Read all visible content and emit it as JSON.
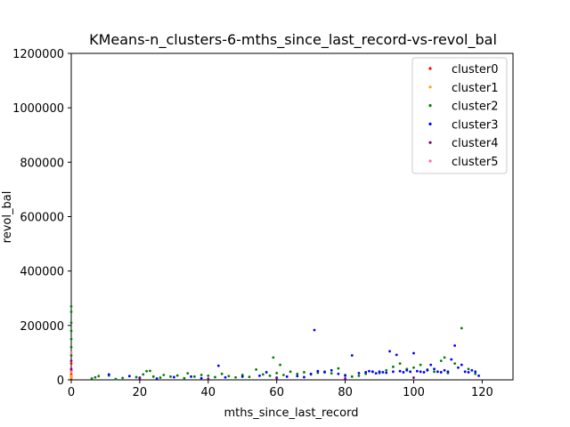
{
  "chart_data": {
    "type": "scatter",
    "title": "KMeans-n_clusters-6-mths_since_last_record-vs-revol_bal",
    "xlabel": "mths_since_last_record",
    "ylabel": "revol_bal",
    "xlim": [
      0,
      129
    ],
    "ylim": [
      0,
      1200000
    ],
    "xticks": [
      0,
      20,
      40,
      60,
      80,
      100,
      120
    ],
    "yticks": [
      0,
      200000,
      400000,
      600000,
      800000,
      1000000,
      1200000
    ],
    "legend_position": "top-right",
    "grid": false,
    "series": [
      {
        "name": "cluster0",
        "color": "#ff0000",
        "points": [
          [
            0,
            5000
          ],
          [
            0,
            12000
          ],
          [
            0,
            20000
          ],
          [
            0,
            35000
          ],
          [
            0,
            60000
          ]
        ]
      },
      {
        "name": "cluster1",
        "color": "#ffa500",
        "points": [
          [
            0,
            8000
          ],
          [
            0,
            15000
          ],
          [
            0,
            28000
          ]
        ]
      },
      {
        "name": "cluster2",
        "color": "#008000",
        "points": [
          [
            0,
            270000
          ],
          [
            0,
            250000
          ],
          [
            0,
            210000
          ],
          [
            0,
            180000
          ],
          [
            0,
            150000
          ],
          [
            0,
            120000
          ],
          [
            0,
            90000
          ],
          [
            6,
            5000
          ],
          [
            7,
            9000
          ],
          [
            8,
            14000
          ],
          [
            11,
            16000
          ],
          [
            13,
            3000
          ],
          [
            15,
            7000
          ],
          [
            17,
            14000
          ],
          [
            19,
            10000
          ],
          [
            21,
            20000
          ],
          [
            22,
            32000
          ],
          [
            23,
            33000
          ],
          [
            24,
            12000
          ],
          [
            26,
            8000
          ],
          [
            27,
            18000
          ],
          [
            29,
            12000
          ],
          [
            31,
            16000
          ],
          [
            33,
            6000
          ],
          [
            34,
            24000
          ],
          [
            36,
            12000
          ],
          [
            38,
            18000
          ],
          [
            40,
            15000
          ],
          [
            42,
            10000
          ],
          [
            44,
            22000
          ],
          [
            46,
            14000
          ],
          [
            48,
            9000
          ],
          [
            50,
            18000
          ],
          [
            52,
            11000
          ],
          [
            54,
            38000
          ],
          [
            56,
            20000
          ],
          [
            58,
            15000
          ],
          [
            59,
            82000
          ],
          [
            60,
            25000
          ],
          [
            61,
            55000
          ],
          [
            62,
            18000
          ],
          [
            64,
            30000
          ],
          [
            66,
            22000
          ],
          [
            68,
            28000
          ],
          [
            70,
            20000
          ],
          [
            72,
            26000
          ],
          [
            74,
            30000
          ],
          [
            76,
            24000
          ],
          [
            78,
            42000
          ],
          [
            80,
            18000
          ],
          [
            82,
            12000
          ],
          [
            84,
            15000
          ],
          [
            86,
            22000
          ],
          [
            88,
            30000
          ],
          [
            90,
            25000
          ],
          [
            92,
            35000
          ],
          [
            94,
            48000
          ],
          [
            96,
            60000
          ],
          [
            98,
            40000
          ],
          [
            100,
            45000
          ],
          [
            102,
            55000
          ],
          [
            104,
            38000
          ],
          [
            106,
            30000
          ],
          [
            108,
            70000
          ],
          [
            109,
            82000
          ],
          [
            110,
            25000
          ],
          [
            112,
            60000
          ],
          [
            114,
            190000
          ],
          [
            116,
            40000
          ],
          [
            118,
            22000
          ]
        ]
      },
      {
        "name": "cluster3",
        "color": "#0000ff",
        "points": [
          [
            11,
            20000
          ],
          [
            17,
            14000
          ],
          [
            20,
            8000
          ],
          [
            25,
            5000
          ],
          [
            30,
            10000
          ],
          [
            35,
            12000
          ],
          [
            38,
            6000
          ],
          [
            43,
            52000
          ],
          [
            45,
            9000
          ],
          [
            50,
            12000
          ],
          [
            55,
            15000
          ],
          [
            57,
            28000
          ],
          [
            60,
            8000
          ],
          [
            63,
            12000
          ],
          [
            66,
            14000
          ],
          [
            68,
            10000
          ],
          [
            70,
            22000
          ],
          [
            71,
            183000
          ],
          [
            72,
            32000
          ],
          [
            74,
            28000
          ],
          [
            76,
            35000
          ],
          [
            78,
            22000
          ],
          [
            80,
            15000
          ],
          [
            82,
            90000
          ],
          [
            84,
            25000
          ],
          [
            86,
            28000
          ],
          [
            87,
            32000
          ],
          [
            88,
            30000
          ],
          [
            89,
            24000
          ],
          [
            90,
            30000
          ],
          [
            91,
            28000
          ],
          [
            92,
            26000
          ],
          [
            93,
            105000
          ],
          [
            94,
            30000
          ],
          [
            95,
            92000
          ],
          [
            96,
            32000
          ],
          [
            97,
            28000
          ],
          [
            98,
            35000
          ],
          [
            99,
            30000
          ],
          [
            100,
            98000
          ],
          [
            101,
            32000
          ],
          [
            102,
            30000
          ],
          [
            103,
            28000
          ],
          [
            104,
            35000
          ],
          [
            105,
            55000
          ],
          [
            106,
            40000
          ],
          [
            107,
            30000
          ],
          [
            108,
            28000
          ],
          [
            109,
            35000
          ],
          [
            110,
            30000
          ],
          [
            111,
            75000
          ],
          [
            112,
            126000
          ],
          [
            113,
            45000
          ],
          [
            114,
            55000
          ],
          [
            115,
            30000
          ],
          [
            116,
            28000
          ],
          [
            117,
            35000
          ],
          [
            118,
            30000
          ],
          [
            119,
            15000
          ]
        ]
      },
      {
        "name": "cluster4",
        "color": "#800080",
        "points": [
          [
            0,
            40000
          ],
          [
            0,
            70000
          ],
          [
            20,
            5000
          ],
          [
            40,
            4000
          ],
          [
            60,
            6000
          ],
          [
            80,
            5000
          ],
          [
            100,
            8000
          ]
        ]
      },
      {
        "name": "cluster5",
        "color": "#ff69b4",
        "points": [
          [
            0,
            100000
          ],
          [
            0,
            30000
          ]
        ]
      }
    ]
  }
}
